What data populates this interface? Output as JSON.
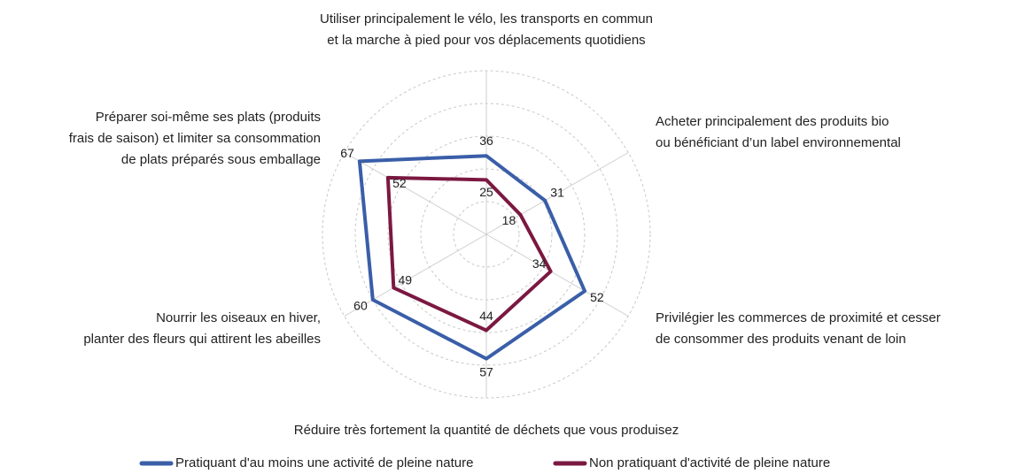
{
  "chart_data": {
    "type": "radar",
    "categories": [
      "Utiliser principalement le vélo, les transports en commun\net la marche à pied pour vos déplacements quotidiens",
      "Acheter principalement des produits bio\nou bénéficiant d’un label environnemental",
      "Privilégier les commerces de proximité et cesser\nde consommer des produits venant de loin",
      "Réduire très fortement la quantité de déchets que vous produisez",
      "Nourrir les oiseaux en hiver,\nplanter des fleurs qui attirent les abeilles",
      "Préparer soi-même ses plats (produits\nfrais de saison) et limiter sa consommation\nde plats préparés sous emballage"
    ],
    "series": [
      {
        "name": "Pratiquant d'au moins une activité de pleine nature",
        "color": "#3a5ea8",
        "values": [
          36,
          31,
          52,
          57,
          60,
          67
        ]
      },
      {
        "name": "Non pratiquant d'activité de pleine nature",
        "color": "#7b1841",
        "values": [
          25,
          18,
          34,
          44,
          49,
          52
        ]
      }
    ],
    "rlim": [
      0,
      75
    ],
    "rticks": [
      15,
      30,
      45,
      60,
      75
    ],
    "grid": true,
    "legend": "bottom"
  }
}
